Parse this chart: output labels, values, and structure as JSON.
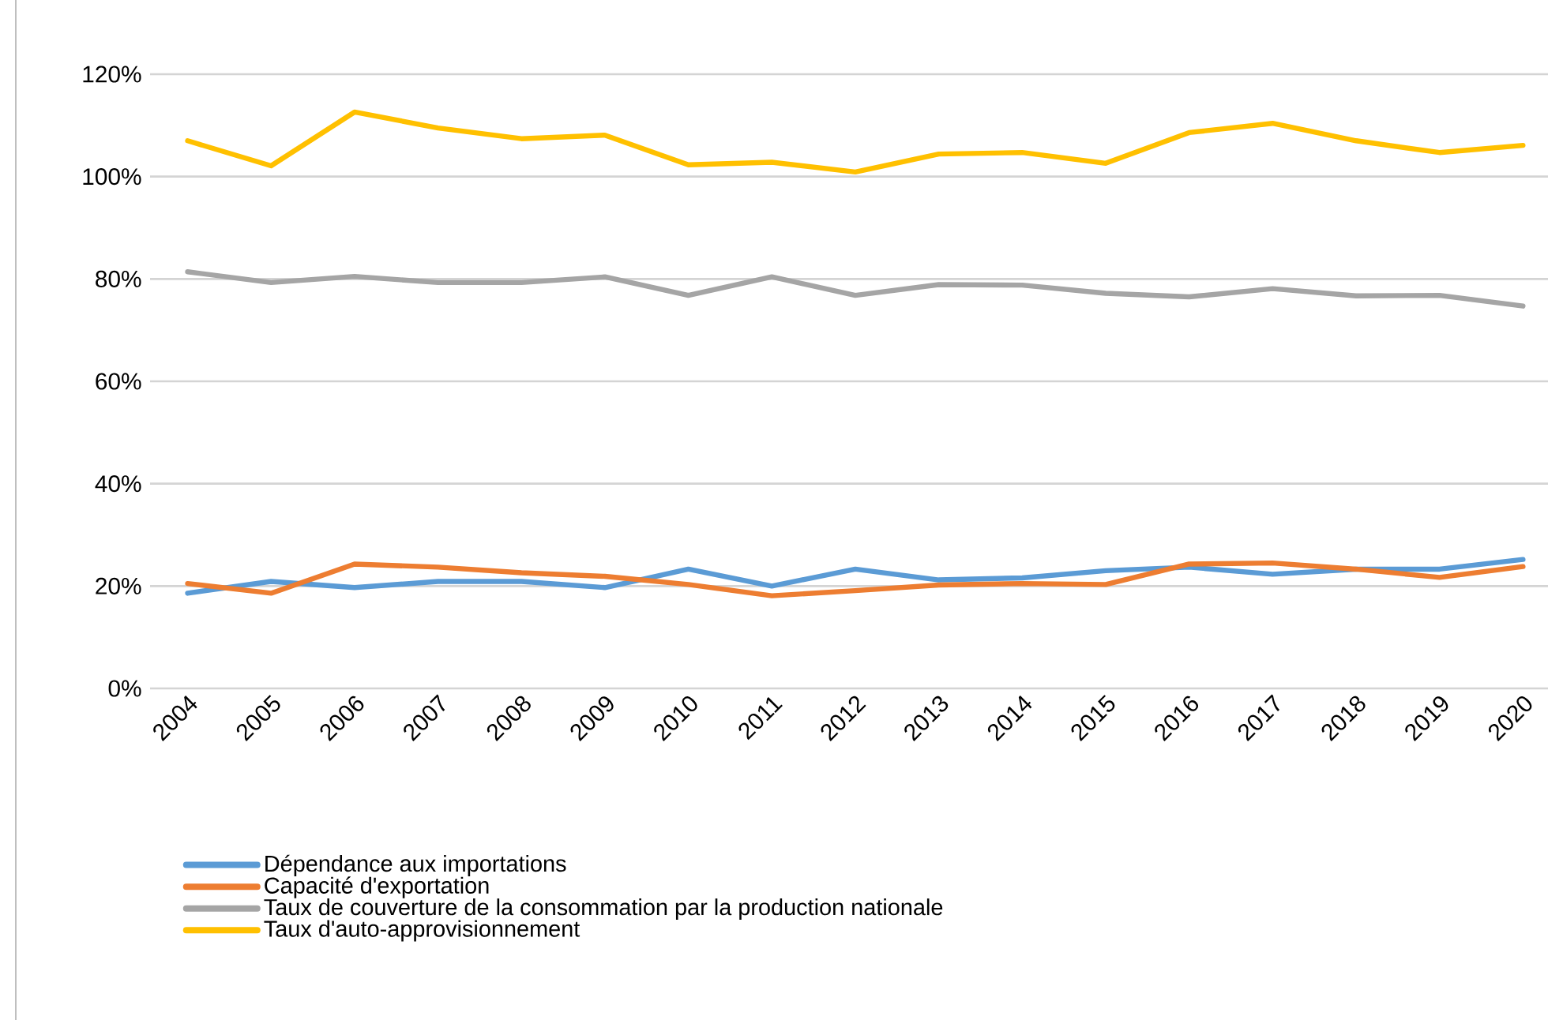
{
  "chart_data": {
    "type": "line",
    "categories": [
      "2004",
      "2005",
      "2006",
      "2007",
      "2008",
      "2009",
      "2010",
      "2011",
      "2012",
      "2013",
      "2014",
      "2015",
      "2016",
      "2017",
      "2018",
      "2019",
      "2020"
    ],
    "series": [
      {
        "name": "Dépendance aux importations",
        "color": "#5b9bd5",
        "values": [
          18.6,
          20.9,
          19.7,
          20.9,
          20.9,
          19.7,
          23.3,
          20.0,
          23.3,
          21.2,
          21.6,
          23.0,
          23.7,
          22.3,
          23.3,
          23.3,
          25.2
        ]
      },
      {
        "name": "Capacité d'exportation",
        "color": "#ed7d31",
        "values": [
          20.5,
          18.6,
          24.3,
          23.7,
          22.6,
          21.9,
          20.3,
          18.1,
          19.1,
          20.2,
          20.5,
          20.3,
          24.3,
          24.5,
          23.3,
          21.7,
          23.8
        ]
      },
      {
        "name": "Taux de couverture de la consommation par la production nationale",
        "color": "#a5a5a5",
        "values": [
          81.4,
          79.3,
          80.5,
          79.3,
          79.3,
          80.4,
          76.8,
          80.4,
          76.8,
          78.9,
          78.8,
          77.2,
          76.5,
          78.1,
          76.7,
          76.8,
          74.7
        ]
      },
      {
        "name": "Taux d'auto-approvisionnement",
        "color": "#ffc000",
        "values": [
          107.0,
          102.1,
          112.6,
          109.5,
          107.4,
          108.1,
          102.3,
          102.8,
          100.9,
          104.4,
          104.7,
          102.6,
          108.6,
          110.4,
          107.0,
          104.7,
          106.1
        ]
      }
    ],
    "ylim": [
      0,
      120
    ],
    "yticks": [
      {
        "value": 0,
        "label": "0%"
      },
      {
        "value": 20,
        "label": "20%"
      },
      {
        "value": 40,
        "label": "40%"
      },
      {
        "value": 60,
        "label": "60%"
      },
      {
        "value": 80,
        "label": "80%"
      },
      {
        "value": 100,
        "label": "100%"
      },
      {
        "value": 120,
        "label": "120%"
      }
    ],
    "grid": "y",
    "legend": "bottom",
    "marker": "none",
    "line_style": "solid"
  }
}
